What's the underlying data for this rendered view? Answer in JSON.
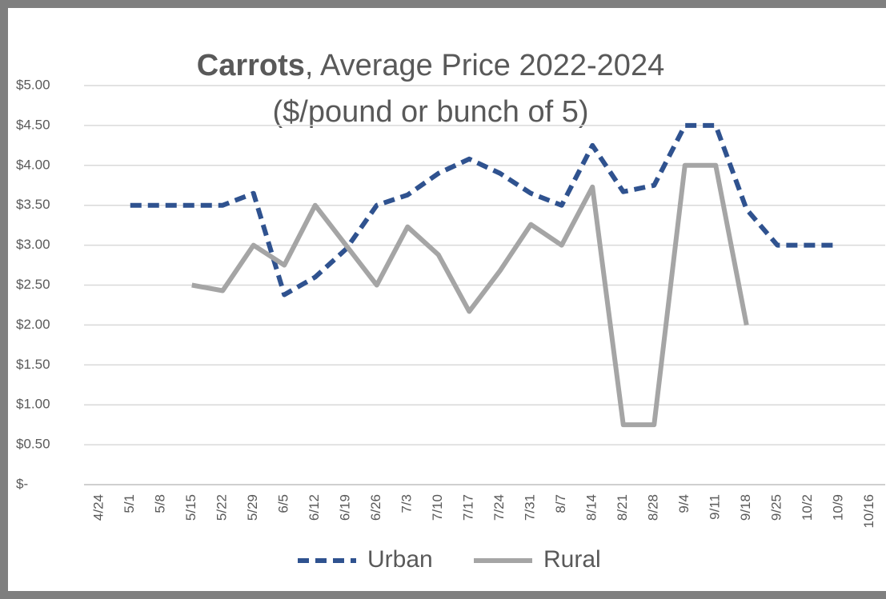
{
  "chart_data": {
    "type": "line",
    "title_bold": "Carrots",
    "title": ", Average Price 2022-2024",
    "subtitle": "($/pound or bunch of 5)",
    "categories": [
      "4/24",
      "5/1",
      "5/8",
      "5/15",
      "5/22",
      "5/29",
      "6/5",
      "6/12",
      "6/19",
      "6/26",
      "7/3",
      "7/10",
      "7/17",
      "7/24",
      "7/31",
      "8/7",
      "8/14",
      "8/21",
      "8/28",
      "9/4",
      "9/11",
      "9/18",
      "9/25",
      "10/2",
      "10/9",
      "10/16"
    ],
    "series": [
      {
        "name": "Urban",
        "color": "#2f528f",
        "dashed": true,
        "values": [
          null,
          3.5,
          3.5,
          3.5,
          3.5,
          3.65,
          2.38,
          2.6,
          2.95,
          3.5,
          3.63,
          3.9,
          4.08,
          3.9,
          3.65,
          3.5,
          4.25,
          3.67,
          3.75,
          4.5,
          4.5,
          3.45,
          3.0,
          3.0,
          3.0,
          null
        ]
      },
      {
        "name": "Rural",
        "color": "#a5a5a5",
        "dashed": false,
        "values": [
          null,
          null,
          null,
          2.5,
          2.43,
          3.0,
          2.75,
          3.5,
          3.0,
          2.5,
          3.23,
          2.88,
          2.17,
          2.68,
          3.26,
          3.0,
          3.73,
          0.75,
          0.75,
          4.0,
          4.0,
          2.0,
          null,
          null,
          null,
          null
        ]
      }
    ],
    "ylim": [
      0,
      5
    ],
    "yticks": [
      {
        "value": 0,
        "label": "$-"
      },
      {
        "value": 0.5,
        "label": "$0.50"
      },
      {
        "value": 1,
        "label": "$1.00"
      },
      {
        "value": 1.5,
        "label": "$1.50"
      },
      {
        "value": 2,
        "label": "$2.00"
      },
      {
        "value": 2.5,
        "label": "$2.50"
      },
      {
        "value": 3,
        "label": "$3.00"
      },
      {
        "value": 3.5,
        "label": "$3.50"
      },
      {
        "value": 4,
        "label": "$4.00"
      },
      {
        "value": 4.5,
        "label": "$4.50"
      },
      {
        "value": 5,
        "label": "$5.00"
      }
    ],
    "grid": true,
    "legend": "bottom"
  }
}
